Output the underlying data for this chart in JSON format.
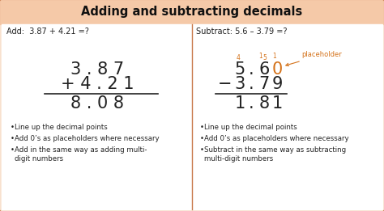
{
  "title": "Adding and subtracting decimals",
  "title_bg": "#f5c9a8",
  "outer_bg": "#fbe6d4",
  "inner_bg": "#ffffff",
  "border_color": "#c8784a",
  "title_color": "#111111",
  "body_color": "#222222",
  "orange_color": "#d4721a",
  "left_header": "Add:  3.87 + 4.21 =?",
  "right_header": "Subtract: 5.6 – 3.79 =?",
  "left_line1": "3 . 8 7",
  "left_line2": "+ 4 . 2 1",
  "left_line3": "8 . 0 8",
  "right_line2": "− 3 . 7 9",
  "right_line3": "1 . 8 1",
  "placeholder_label": "placeholder",
  "left_bullets": [
    "Line up the decimal points",
    "Add 0’s as placeholders where necessary",
    "Add in the same way as adding multi-\ndigit numbers"
  ],
  "right_bullets": [
    "Line up the decimal points",
    "Add 0’s as placeholders where necessary",
    "Subtract in the same way as subtracting\nmulti-digit numbers"
  ]
}
